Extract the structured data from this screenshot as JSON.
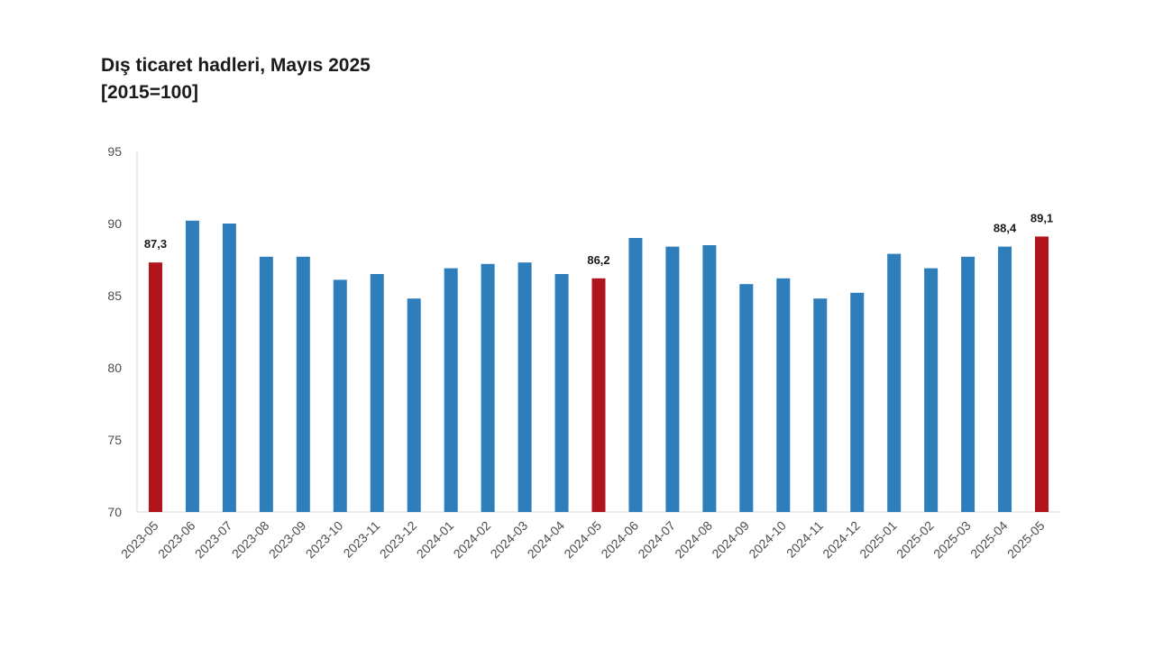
{
  "chart_data": {
    "type": "bar",
    "title": "Dış ticaret hadleri, Mayıs 2025",
    "subtitle": "[2015=100]",
    "xlabel": "",
    "ylabel": "",
    "ylim": [
      70,
      95
    ],
    "yticks": [
      70,
      75,
      80,
      85,
      90,
      95
    ],
    "grid": false,
    "categories": [
      "2023-05",
      "2023-06",
      "2023-07",
      "2023-08",
      "2023-09",
      "2023-10",
      "2023-11",
      "2023-12",
      "2024-01",
      "2024-02",
      "2024-03",
      "2024-04",
      "2024-05",
      "2024-06",
      "2024-07",
      "2024-08",
      "2024-09",
      "2024-10",
      "2024-11",
      "2024-12",
      "2025-01",
      "2025-02",
      "2025-03",
      "2025-04",
      "2025-05"
    ],
    "values": [
      87.3,
      90.2,
      90.0,
      87.7,
      87.7,
      86.1,
      86.5,
      84.8,
      86.9,
      87.2,
      87.3,
      86.5,
      86.2,
      89.0,
      88.4,
      88.5,
      85.8,
      86.2,
      84.8,
      85.2,
      87.9,
      86.9,
      87.7,
      88.4,
      89.1
    ],
    "highlighted": [
      "2023-05",
      "2024-05",
      "2025-05"
    ],
    "data_labels": {
      "2023-05": "87,3",
      "2024-05": "86,2",
      "2025-04": "88,4",
      "2025-05": "89,1"
    },
    "colors": {
      "bar": "#2f7ebc",
      "highlight": "#b0141c",
      "axis": "#d9d9d9"
    }
  }
}
